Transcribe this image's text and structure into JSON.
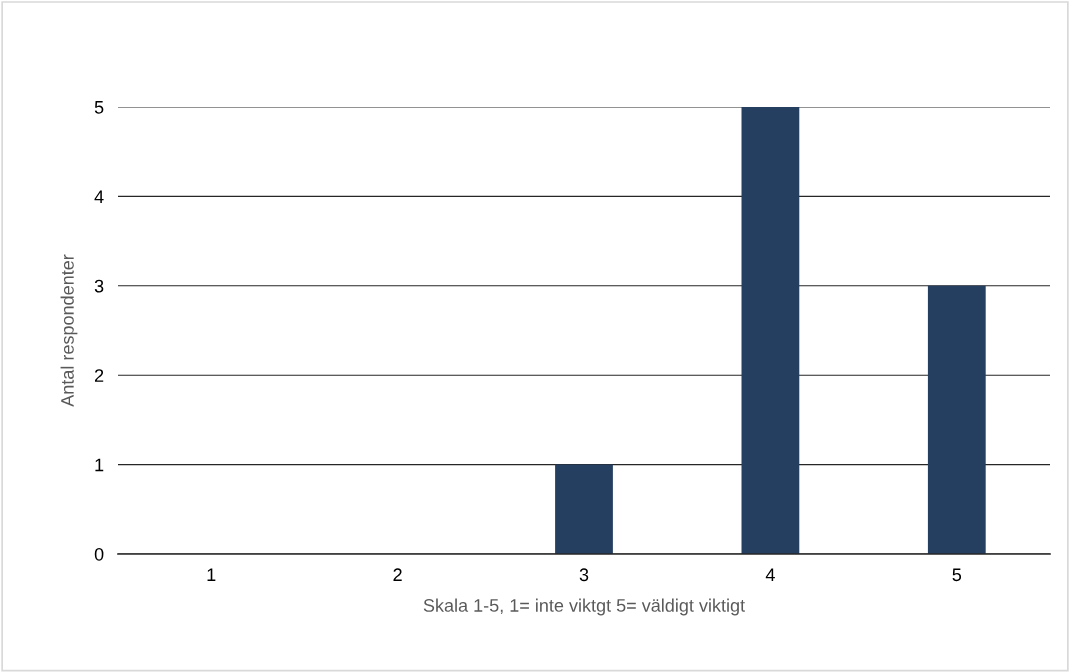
{
  "chart_data": {
    "type": "bar",
    "categories": [
      "1",
      "2",
      "3",
      "4",
      "5"
    ],
    "values": [
      0,
      0,
      1,
      5,
      3
    ],
    "color": "#243f60",
    "xlabel": "Skala 1-5, 1= inte viktgt 5= väldigt viktigt",
    "ylabel": "Antal respondenter",
    "ylim": [
      0,
      5
    ],
    "yticks": [
      0,
      1,
      2,
      3,
      4,
      5
    ],
    "grid": "y",
    "legend": false
  }
}
